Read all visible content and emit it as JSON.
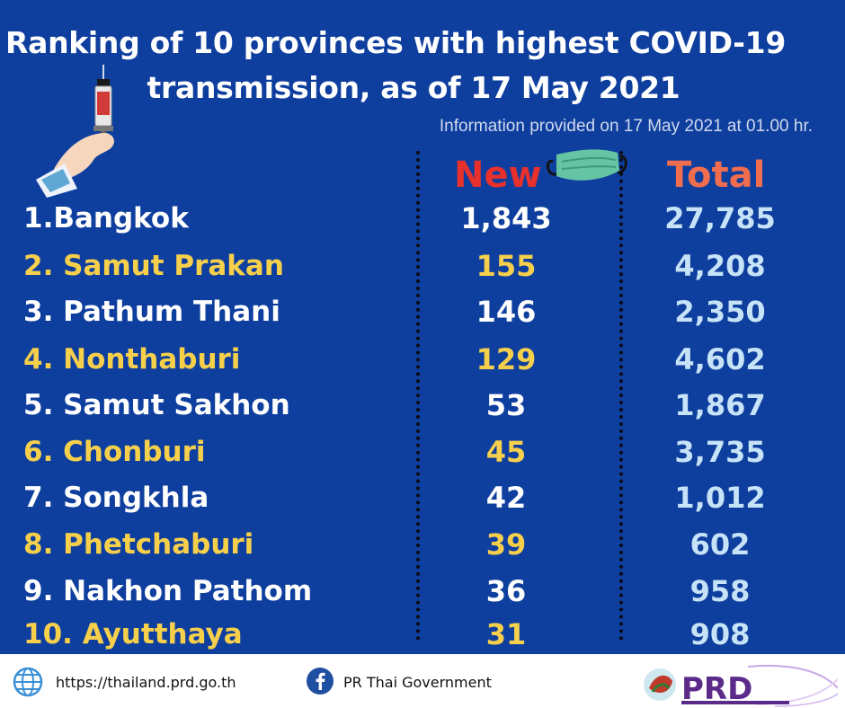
{
  "title": {
    "line1": "Ranking of 10 provinces with highest COVID-19",
    "line2": "transmission, as of 17 May 2021",
    "subtitle": "Information provided on 17 May 2021 at 01.00 hr."
  },
  "columns": {
    "new": "New",
    "total": "Total"
  },
  "colors": {
    "background": "#0f3f9e",
    "yellow": "#f7d04b",
    "white": "#ffffff",
    "total": "#c7e3f7",
    "new_header": "#e8302c",
    "total_header": "#f06e4f"
  },
  "rows": [
    {
      "province": "1.Bangkok",
      "new": "1,843",
      "total": "27,785",
      "style": "white"
    },
    {
      "province": "2. Samut Prakan",
      "new": "155",
      "total": "4,208",
      "style": "yellow"
    },
    {
      "province": "3. Pathum Thani",
      "new": "146",
      "total": "2,350",
      "style": "white"
    },
    {
      "province": "4. Nonthaburi",
      "new": "129",
      "total": "4,602",
      "style": "yellow"
    },
    {
      "province": "5. Samut Sakhon",
      "new": "53",
      "total": "1,867",
      "style": "white"
    },
    {
      "province": "6. Chonburi",
      "new": "45",
      "total": "3,735",
      "style": "yellow"
    },
    {
      "province": "7. Songkhla",
      "new": "42",
      "total": "1,012",
      "style": "white"
    },
    {
      "province": "8. Phetchaburi",
      "new": "39",
      "total": "602",
      "style": "yellow"
    },
    {
      "province": "9. Nakhon Pathom",
      "new": "36",
      "total": "958",
      "style": "white"
    },
    {
      "province": "10. Ayutthaya",
      "new": "31",
      "total": "908",
      "style": "yellow"
    }
  ],
  "footer": {
    "url": "https://thailand.prd.go.th",
    "facebook": "PR Thai Government",
    "url_icon": "globe-icon",
    "facebook_icon": "facebook-icon",
    "logo_text": "PRD"
  }
}
